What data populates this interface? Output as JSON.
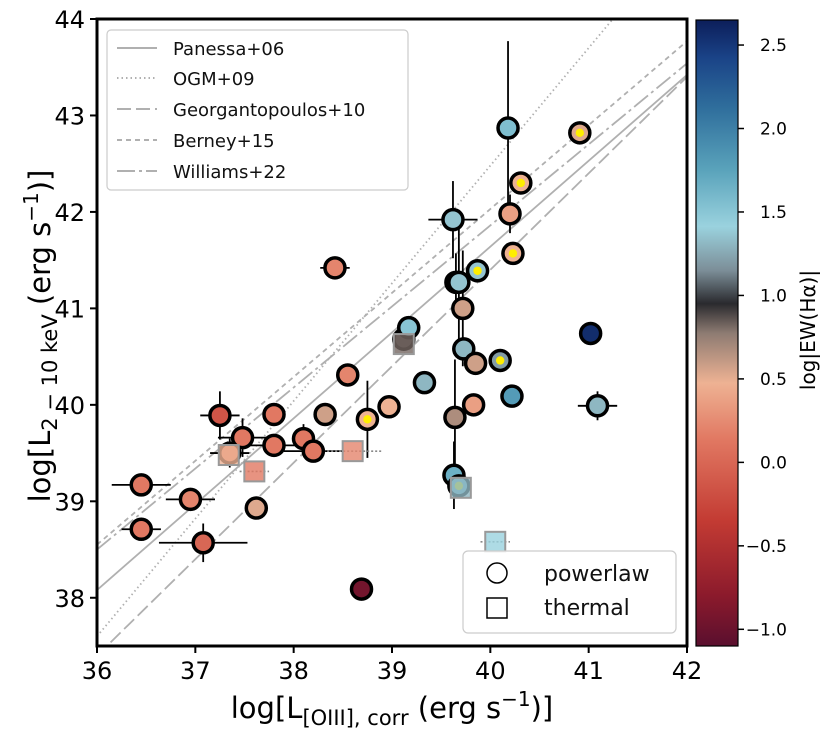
{
  "chart_data": {
    "type": "scatter",
    "xlabel": {
      "main": "log[L",
      "sub": "[OIII], corr",
      "tail": " (erg s",
      "sup": "−1",
      "end": ")]"
    },
    "ylabel": {
      "main": "log[L",
      "sub": "2 − 10 keV",
      "tail": " (erg s",
      "sup": "−1",
      "end": ")]"
    },
    "xlim": [
      36,
      42
    ],
    "ylim": [
      37.5,
      44
    ],
    "xticks": [
      "36",
      "37",
      "38",
      "39",
      "40",
      "41",
      "42"
    ],
    "yticks": [
      "38",
      "39",
      "40",
      "41",
      "42",
      "43",
      "44"
    ],
    "colorbar": {
      "label": "log|EW(Hα)|",
      "range": [
        -1.1,
        2.65
      ],
      "ticks": [
        "−1.0",
        "−0.5",
        "0.0",
        "0.5",
        "1.0",
        "1.5",
        "2.0",
        "2.5"
      ],
      "tick_values": [
        -1.0,
        -0.5,
        0.0,
        0.5,
        1.0,
        1.5,
        2.0,
        2.5
      ]
    },
    "relations": [
      {
        "name": "Panessa+06",
        "style": "solid",
        "slope": 0.89,
        "intercept_at_36": 38.08
      },
      {
        "name": "OGM+09",
        "style": "dotted",
        "slope": 1.22,
        "intercept_at_36": 37.6
      },
      {
        "name": "Georgantopoulos+10",
        "style": "longdash",
        "slope": 1.0,
        "intercept_at_36": 37.4
      },
      {
        "name": "Berney+15",
        "style": "shortdash",
        "slope": 0.87,
        "intercept_at_36": 38.55
      },
      {
        "name": "Williams+22",
        "style": "dashdot",
        "slope": 0.84,
        "intercept_at_36": 38.5
      }
    ],
    "points": [
      {
        "x": 36.45,
        "y": 39.17,
        "ew": 0.0,
        "shape": "circle",
        "xerr": 0.3,
        "yerr": 0.0
      },
      {
        "x": 36.45,
        "y": 38.71,
        "ew": 0.0,
        "shape": "circle",
        "xerr": 0.2,
        "yerr": 0.0
      },
      {
        "x": 36.95,
        "y": 39.02,
        "ew": 0.1,
        "shape": "circle",
        "xerr": 0.25,
        "yerr": 0.0
      },
      {
        "x": 37.08,
        "y": 38.57,
        "ew": -0.1,
        "shape": "circle",
        "xerr": 0.45,
        "yerr": 0.2
      },
      {
        "x": 37.25,
        "y": 39.89,
        "ew": -0.2,
        "shape": "circle",
        "xerr": 0.2,
        "yerr": 0.25
      },
      {
        "x": 37.48,
        "y": 39.66,
        "ew": 0.0,
        "shape": "circle",
        "xerr": 0.25,
        "yerr": 0.2
      },
      {
        "x": 37.35,
        "y": 39.5,
        "ew": 0.1,
        "shape": "circle",
        "xerr": 0.2,
        "yerr": 0.15
      },
      {
        "x": 37.62,
        "y": 38.93,
        "ew": 0.5,
        "shape": "circle",
        "xerr": 0.0,
        "yerr": 0.0
      },
      {
        "x": 37.8,
        "y": 39.9,
        "ew": 0.0,
        "shape": "circle",
        "xerr": 0.0,
        "yerr": 0.0
      },
      {
        "x": 37.8,
        "y": 39.58,
        "ew": 0.0,
        "shape": "circle",
        "xerr": 0.25,
        "yerr": 0.0
      },
      {
        "x": 38.1,
        "y": 39.65,
        "ew": 0.0,
        "shape": "circle",
        "xerr": 0.0,
        "yerr": 0.15
      },
      {
        "x": 38.2,
        "y": 39.52,
        "ew": 0.0,
        "shape": "circle",
        "xerr": 0.3,
        "yerr": 0.0
      },
      {
        "x": 38.32,
        "y": 39.9,
        "ew": 0.55,
        "shape": "circle",
        "xerr": 0.0,
        "yerr": 0.0
      },
      {
        "x": 38.42,
        "y": 41.42,
        "ew": 0.1,
        "shape": "circle",
        "xerr": 0.15,
        "yerr": 0.0
      },
      {
        "x": 38.55,
        "y": 40.31,
        "ew": 0.1,
        "shape": "circle",
        "xerr": 0.0,
        "yerr": 0.0
      },
      {
        "x": 38.75,
        "y": 39.85,
        "ew": 0.45,
        "shape": "circle",
        "xerr": 0.0,
        "yerr": 0.4,
        "flag": true
      },
      {
        "x": 38.97,
        "y": 39.98,
        "ew": 0.45,
        "shape": "circle",
        "xerr": 0.0,
        "yerr": 0.0
      },
      {
        "x": 38.69,
        "y": 38.09,
        "ew": -0.95,
        "shape": "circle",
        "xerr": 0.0,
        "yerr": 0.0
      },
      {
        "x": 39.12,
        "y": 40.68,
        "ew": 0.9,
        "shape": "circle",
        "xerr": 0.0,
        "yerr": 0.0
      },
      {
        "x": 39.17,
        "y": 40.8,
        "ew": 1.5,
        "shape": "circle",
        "xerr": 0.0,
        "yerr": 0.0
      },
      {
        "x": 39.33,
        "y": 40.23,
        "ew": 1.3,
        "shape": "circle",
        "xerr": 0.0,
        "yerr": 0.0
      },
      {
        "x": 39.62,
        "y": 41.92,
        "ew": 1.35,
        "shape": "circle",
        "xerr": 0.25,
        "yerr": 0.4
      },
      {
        "x": 39.65,
        "y": 41.27,
        "ew": 0.7,
        "shape": "circle",
        "xerr": 0.0,
        "yerr": 0.3
      },
      {
        "x": 39.68,
        "y": 41.27,
        "ew": 1.35,
        "shape": "circle",
        "xerr": 0.0,
        "yerr": 0.7
      },
      {
        "x": 39.72,
        "y": 41.0,
        "ew": 0.55,
        "shape": "circle",
        "xerr": 0.0,
        "yerr": 0.6
      },
      {
        "x": 39.73,
        "y": 40.58,
        "ew": 1.3,
        "shape": "circle",
        "xerr": 0.0,
        "yerr": 0.0
      },
      {
        "x": 39.64,
        "y": 39.87,
        "ew": 0.65,
        "shape": "circle",
        "xerr": 0.0,
        "yerr": 0.6
      },
      {
        "x": 39.63,
        "y": 39.27,
        "ew": 1.65,
        "shape": "circle",
        "xerr": 0.0,
        "yerr": 0.35
      },
      {
        "x": 39.68,
        "y": 39.16,
        "ew": 1.6,
        "shape": "circle",
        "xerr": 0.0,
        "yerr": 0.0,
        "flag": true
      },
      {
        "x": 39.83,
        "y": 40.0,
        "ew": 0.3,
        "shape": "circle",
        "xerr": 0.0,
        "yerr": 0.0
      },
      {
        "x": 39.87,
        "y": 41.39,
        "ew": 1.35,
        "shape": "circle",
        "xerr": 0.0,
        "yerr": 0.0,
        "flag": true
      },
      {
        "x": 39.85,
        "y": 40.43,
        "ew": 0.55,
        "shape": "circle",
        "xerr": 0.0,
        "yerr": 0.0
      },
      {
        "x": 40.1,
        "y": 40.46,
        "ew": 1.2,
        "shape": "circle",
        "xerr": 0.0,
        "yerr": 0.0,
        "flag": true
      },
      {
        "x": 40.18,
        "y": 42.87,
        "ew": 1.55,
        "shape": "circle",
        "xerr": 0.0,
        "yerr": 0.9
      },
      {
        "x": 40.2,
        "y": 41.98,
        "ew": 0.3,
        "shape": "circle",
        "xerr": 0.0,
        "yerr": 0.2
      },
      {
        "x": 40.23,
        "y": 41.57,
        "ew": 0.45,
        "shape": "circle",
        "xerr": 0.0,
        "yerr": 0.0,
        "flag": true
      },
      {
        "x": 40.31,
        "y": 42.3,
        "ew": 0.45,
        "shape": "circle",
        "xerr": 0.0,
        "yerr": 0.0,
        "flag": true
      },
      {
        "x": 40.22,
        "y": 40.09,
        "ew": 1.8,
        "shape": "circle",
        "xerr": 0.0,
        "yerr": 0.0
      },
      {
        "x": 40.91,
        "y": 42.82,
        "ew": 0.5,
        "shape": "circle",
        "xerr": 0.0,
        "yerr": 0.0,
        "flag": true
      },
      {
        "x": 41.02,
        "y": 40.74,
        "ew": 2.55,
        "shape": "circle",
        "xerr": 0.0,
        "yerr": 0.0
      },
      {
        "x": 41.09,
        "y": 39.99,
        "ew": 1.3,
        "shape": "circle",
        "xerr": 0.2,
        "yerr": 0.15
      },
      {
        "x": 37.34,
        "y": 39.48,
        "ew": 0.45,
        "shape": "square",
        "xerr": 0.0,
        "yerr": 0.0
      },
      {
        "x": 37.6,
        "y": 39.31,
        "ew": 0.0,
        "shape": "square",
        "xerr": 0.15,
        "yerr": 0.0
      },
      {
        "x": 38.6,
        "y": 39.52,
        "ew": 0.1,
        "shape": "square",
        "xerr": 0.3,
        "yerr": 0.0
      },
      {
        "x": 39.12,
        "y": 40.63,
        "ew": 0.8,
        "shape": "square",
        "xerr": 0.0,
        "yerr": 0.0
      },
      {
        "x": 39.7,
        "y": 39.14,
        "ew": 1.3,
        "shape": "square",
        "xerr": 0.0,
        "yerr": 0.0
      },
      {
        "x": 40.05,
        "y": 38.58,
        "ew": 1.4,
        "shape": "square",
        "xerr": 0.15,
        "yerr": 0.0
      }
    ]
  },
  "legend_lines": {
    "panessa": "Panessa+06",
    "ogm": "OGM+09",
    "georgantopoulos": "Georgantopoulos+10",
    "berney": "Berney+15",
    "williams": "Williams+22"
  },
  "legend_markers": {
    "powerlaw": "powerlaw",
    "thermal": "thermal"
  },
  "colors": {
    "flag_dot": "#ffee00",
    "relation_line": "#b0b0b0",
    "axis": "#000000"
  }
}
